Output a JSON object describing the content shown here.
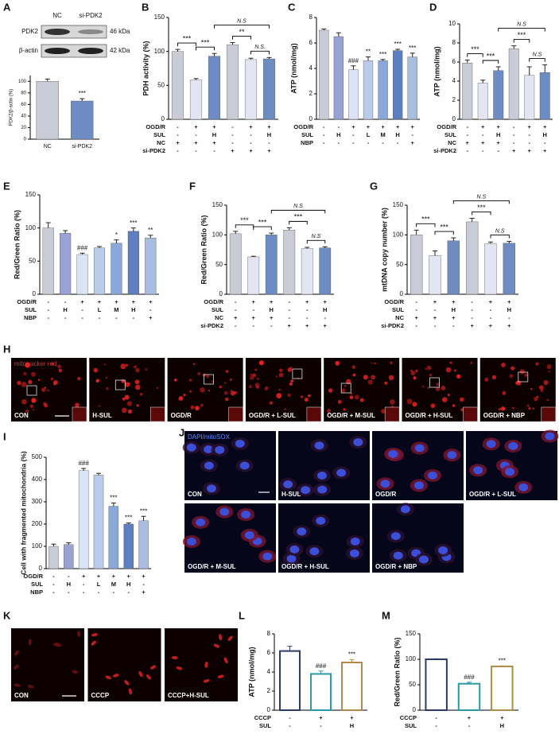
{
  "blot": {
    "panel": "A",
    "lanes": [
      "NC",
      "si-PDK2"
    ],
    "rows": [
      {
        "name": "PDK2",
        "size": "46 kDa"
      },
      {
        "name": "β-actin",
        "size": "42 kDa"
      }
    ]
  },
  "chart_data": [
    {
      "type": "bar",
      "panel": "A",
      "ylabel": "PDK2/β-actin (%)",
      "categories": [
        "NC",
        "si-PDK2"
      ],
      "values": [
        100,
        66
      ],
      "errors": [
        4,
        4
      ],
      "colors": [
        "#c9ccd6",
        "#6d8cc4"
      ],
      "ylim": [
        0,
        110
      ],
      "yticks": [
        0,
        20,
        40,
        60,
        80,
        100
      ],
      "conditions": [],
      "brackets": [],
      "annotations": [
        {
          "bar": 1,
          "text": "***"
        }
      ]
    },
    {
      "type": "bar",
      "panel": "B",
      "ylabel": "PDH activity (%)",
      "categories": [
        null,
        null,
        null,
        null,
        null,
        null
      ],
      "values": [
        100,
        58,
        93,
        110,
        88,
        89
      ],
      "errors": [
        3,
        2,
        4,
        3,
        2,
        2
      ],
      "colors": [
        "#c9ccd6",
        "#e3e6f2",
        "#6d8cc4",
        "#c9ccd6",
        "#e3e6f2",
        "#6d8cc4"
      ],
      "ylim": [
        0,
        150
      ],
      "yticks": [
        0,
        50,
        100,
        150
      ],
      "conditions": [
        {
          "name": "OGD/R",
          "marks": [
            "-",
            "+",
            "+",
            "-",
            "+",
            "+"
          ]
        },
        {
          "name": "SUL",
          "marks": [
            "-",
            "-",
            "H",
            "-",
            "-",
            "H"
          ]
        },
        {
          "name": "NC",
          "marks": [
            "+",
            "+",
            "+",
            "-",
            "-",
            "-"
          ]
        },
        {
          "name": "si-PDK2",
          "marks": [
            "-",
            "-",
            "-",
            "+",
            "+",
            "+"
          ]
        }
      ],
      "brackets": [
        {
          "from": 0,
          "to": 1,
          "text": "***"
        },
        {
          "from": 1,
          "to": 2,
          "text": "***"
        },
        {
          "from": 2,
          "to": 5,
          "text": "N.S"
        },
        {
          "from": 3,
          "to": 4,
          "text": "**"
        },
        {
          "from": 4,
          "to": 5,
          "text": "N.S."
        }
      ],
      "annotations": []
    },
    {
      "type": "bar",
      "panel": "C",
      "ylabel": "ATP (nmol/mg)",
      "categories": [
        null,
        null,
        null,
        null,
        null,
        null,
        null
      ],
      "values": [
        7.0,
        6.5,
        3.9,
        4.6,
        4.6,
        5.4,
        4.9
      ],
      "errors": [
        0.1,
        0.3,
        0.3,
        0.3,
        0.1,
        0.1,
        0.3
      ],
      "colors": [
        "#c9ccd6",
        "#9aa2d4",
        "#dbe4f6",
        "#b9cbe9",
        "#8aa7d9",
        "#5d7fc1",
        "#a9bde0"
      ],
      "ylim": [
        0,
        8
      ],
      "yticks": [
        0,
        2,
        4,
        6,
        8
      ],
      "conditions": [
        {
          "name": "OGD/R",
          "marks": [
            "-",
            "-",
            "+",
            "+",
            "+",
            "+",
            "+"
          ]
        },
        {
          "name": "SUL",
          "marks": [
            "-",
            "H",
            "-",
            "L",
            "M",
            "H",
            "-"
          ]
        },
        {
          "name": "NBP",
          "marks": [
            "-",
            "-",
            "-",
            "-",
            "-",
            "-",
            "+"
          ]
        }
      ],
      "brackets": [],
      "annotations": [
        {
          "bar": 2,
          "text": "###"
        },
        {
          "bar": 3,
          "text": "**"
        },
        {
          "bar": 4,
          "text": "***"
        },
        {
          "bar": 5,
          "text": "***"
        },
        {
          "bar": 6,
          "text": "***"
        }
      ]
    },
    {
      "type": "bar",
      "panel": "D",
      "ylabel": "ATP (nmol/mg)",
      "categories": [
        null,
        null,
        null,
        null,
        null,
        null
      ],
      "values": [
        5.9,
        3.8,
        5.1,
        7.4,
        4.6,
        4.9
      ],
      "errors": [
        0.3,
        0.3,
        0.4,
        0.3,
        0.9,
        0.8
      ],
      "colors": [
        "#c9ccd6",
        "#e3e6f2",
        "#6d8cc4",
        "#c9ccd6",
        "#e3e6f2",
        "#6d8cc4"
      ],
      "ylim": [
        0,
        10
      ],
      "yticks": [
        0,
        2,
        4,
        6,
        8,
        10
      ],
      "conditions": [
        {
          "name": "OGD/R",
          "marks": [
            "-",
            "+",
            "+",
            "-",
            "+",
            "+"
          ]
        },
        {
          "name": "SUL",
          "marks": [
            "-",
            "-",
            "H",
            "-",
            "-",
            "H"
          ]
        },
        {
          "name": "NC",
          "marks": [
            "+",
            "+",
            "+",
            "-",
            "-",
            "-"
          ]
        },
        {
          "name": "si-PDK2",
          "marks": [
            "-",
            "-",
            "-",
            "+",
            "+",
            "+"
          ]
        }
      ],
      "brackets": [
        {
          "from": 0,
          "to": 1,
          "text": "***"
        },
        {
          "from": 1,
          "to": 2,
          "text": "***"
        },
        {
          "from": 2,
          "to": 5,
          "text": "N.S"
        },
        {
          "from": 3,
          "to": 4,
          "text": "***"
        },
        {
          "from": 4,
          "to": 5,
          "text": "N.S"
        }
      ],
      "annotations": []
    },
    {
      "type": "bar",
      "panel": "E",
      "ylabel": "Red/Green Ratio (%)",
      "categories": [
        null,
        null,
        null,
        null,
        null,
        null,
        null
      ],
      "values": [
        100,
        92,
        60,
        70,
        77,
        95,
        85
      ],
      "errors": [
        8,
        4,
        2,
        2,
        5,
        5,
        4
      ],
      "colors": [
        "#c9ccd6",
        "#9aa2d4",
        "#dbe4f6",
        "#b9cbe9",
        "#8aa7d9",
        "#5d7fc1",
        "#a9bde0"
      ],
      "ylim": [
        0,
        150
      ],
      "yticks": [
        0,
        50,
        100,
        150
      ],
      "conditions": [
        {
          "name": "OGD/R",
          "marks": [
            "-",
            "-",
            "+",
            "+",
            "+",
            "+",
            "+"
          ]
        },
        {
          "name": "SUL",
          "marks": [
            "-",
            "H",
            "-",
            "L",
            "M",
            "H",
            "-"
          ]
        },
        {
          "name": "NBP",
          "marks": [
            "-",
            "-",
            "-",
            "-",
            "-",
            "-",
            "+"
          ]
        }
      ],
      "brackets": [],
      "annotations": [
        {
          "bar": 2,
          "text": "###"
        },
        {
          "bar": 4,
          "text": "*"
        },
        {
          "bar": 5,
          "text": "***"
        },
        {
          "bar": 6,
          "text": "**"
        }
      ]
    },
    {
      "type": "bar",
      "panel": "F",
      "ylabel": "Red/Green Ratio (%)",
      "categories": [
        null,
        null,
        null,
        null,
        null,
        null
      ],
      "values": [
        102,
        63,
        100,
        108,
        77,
        78
      ],
      "errors": [
        4,
        1,
        3,
        4,
        2,
        2
      ],
      "colors": [
        "#c9ccd6",
        "#e3e6f2",
        "#6d8cc4",
        "#c9ccd6",
        "#e3e6f2",
        "#6d8cc4"
      ],
      "ylim": [
        0,
        150
      ],
      "yticks": [
        0,
        50,
        100,
        150
      ],
      "conditions": [
        {
          "name": "OGD/R",
          "marks": [
            "-",
            "+",
            "+",
            "-",
            "+",
            "+"
          ]
        },
        {
          "name": "SUL",
          "marks": [
            "-",
            "-",
            "H",
            "-",
            "-",
            "H"
          ]
        },
        {
          "name": "NC",
          "marks": [
            "+",
            "+",
            "+",
            "-",
            "-",
            "-"
          ]
        },
        {
          "name": "si-PDK2",
          "marks": [
            "-",
            "-",
            "-",
            "+",
            "+",
            "+"
          ]
        }
      ],
      "brackets": [
        {
          "from": 0,
          "to": 1,
          "text": "***"
        },
        {
          "from": 1,
          "to": 2,
          "text": "***"
        },
        {
          "from": 2,
          "to": 5,
          "text": "N.S"
        },
        {
          "from": 3,
          "to": 4,
          "text": "***"
        },
        {
          "from": 4,
          "to": 5,
          "text": "N.S"
        }
      ],
      "annotations": []
    },
    {
      "type": "bar",
      "panel": "G",
      "ylabel": "mtDNA copy number (%)",
      "categories": [
        null,
        null,
        null,
        null,
        null,
        null
      ],
      "values": [
        100,
        65,
        90,
        122,
        85,
        86
      ],
      "errors": [
        8,
        8,
        5,
        6,
        3,
        3
      ],
      "colors": [
        "#c9ccd6",
        "#e3e6f2",
        "#6d8cc4",
        "#c9ccd6",
        "#e3e6f2",
        "#6d8cc4"
      ],
      "ylim": [
        0,
        150
      ],
      "yticks": [
        0,
        50,
        100,
        150
      ],
      "conditions": [
        {
          "name": "OGD/R",
          "marks": [
            "-",
            "+",
            "+",
            "-",
            "+",
            "+"
          ]
        },
        {
          "name": "SUL",
          "marks": [
            "-",
            "-",
            "H",
            "-",
            "-",
            "H"
          ]
        },
        {
          "name": "NC",
          "marks": [
            "+",
            "+",
            "+",
            "-",
            "-",
            "-"
          ]
        },
        {
          "name": "si-PDK2",
          "marks": [
            "-",
            "-",
            "-",
            "+",
            "+",
            "+"
          ]
        }
      ],
      "brackets": [
        {
          "from": 0,
          "to": 1,
          "text": "***"
        },
        {
          "from": 1,
          "to": 2,
          "text": "***"
        },
        {
          "from": 2,
          "to": 5,
          "text": "N.S"
        },
        {
          "from": 3,
          "to": 4,
          "text": "***"
        },
        {
          "from": 4,
          "to": 5,
          "text": "N.S"
        }
      ],
      "annotations": []
    },
    {
      "type": "bar",
      "panel": "I",
      "ylabel": "Cell with fragmented mitochondria (%)",
      "categories": [
        null,
        null,
        null,
        null,
        null,
        null,
        null
      ],
      "values": [
        100,
        108,
        440,
        420,
        280,
        200,
        215
      ],
      "errors": [
        10,
        8,
        10,
        8,
        15,
        5,
        20
      ],
      "colors": [
        "#c9ccd6",
        "#9aa2d4",
        "#dbe4f6",
        "#b9cbe9",
        "#8aa7d9",
        "#5d7fc1",
        "#a9bde0"
      ],
      "ylim": [
        0,
        500
      ],
      "yticks": [
        0,
        100,
        200,
        300,
        400,
        500
      ],
      "conditions": [
        {
          "name": "OGD/R",
          "marks": [
            "-",
            "-",
            "+",
            "+",
            "+",
            "+",
            "+"
          ]
        },
        {
          "name": "SUL",
          "marks": [
            "-",
            "H",
            "-",
            "L",
            "M",
            "H",
            "-"
          ]
        },
        {
          "name": "NBP",
          "marks": [
            "-",
            "-",
            "-",
            "-",
            "-",
            "-",
            "+"
          ]
        }
      ],
      "brackets": [],
      "annotations": [
        {
          "bar": 2,
          "text": "###"
        },
        {
          "bar": 4,
          "text": "***"
        },
        {
          "bar": 5,
          "text": "***"
        },
        {
          "bar": 6,
          "text": "***"
        }
      ]
    },
    {
      "type": "bar",
      "panel": "L",
      "ylabel": "ATP (nmol/mg)",
      "hollow": true,
      "categories": [
        null,
        null,
        null
      ],
      "values": [
        6.2,
        3.8,
        5.0
      ],
      "errors": [
        0.5,
        0.3,
        0.3
      ],
      "colors": [
        "#2b3a67",
        "#2a9aa8",
        "#b08a4a"
      ],
      "ylim": [
        0,
        8
      ],
      "yticks": [
        0,
        2,
        4,
        6,
        8
      ],
      "conditions": [
        {
          "name": "CCCP",
          "marks": [
            "-",
            "+",
            "+"
          ]
        },
        {
          "name": "SUL",
          "marks": [
            "-",
            "-",
            "H"
          ]
        }
      ],
      "brackets": [],
      "annotations": [
        {
          "bar": 1,
          "text": "###"
        },
        {
          "bar": 2,
          "text": "***"
        }
      ]
    },
    {
      "type": "bar",
      "panel": "M",
      "ylabel": "Red/Green Ratio (%)",
      "hollow": true,
      "categories": [
        null,
        null,
        null
      ],
      "values": [
        100,
        52,
        86
      ],
      "errors": [
        1,
        3,
        1
      ],
      "colors": [
        "#2b3a67",
        "#2a9aa8",
        "#b08a4a"
      ],
      "ylim": [
        0,
        150
      ],
      "yticks": [
        0,
        50,
        100,
        150
      ],
      "conditions": [
        {
          "name": "CCCP",
          "marks": [
            "-",
            "+",
            "+"
          ]
        },
        {
          "name": "SUL",
          "marks": [
            "-",
            "-",
            "H"
          ]
        }
      ],
      "brackets": [],
      "annotations": [
        {
          "bar": 1,
          "text": "###"
        },
        {
          "bar": 2,
          "text": "***"
        }
      ]
    }
  ],
  "image_panels": [
    {
      "panel": "H",
      "tag": "mitotracker red",
      "images": [
        "CON",
        "H-SUL",
        "OGD/R",
        "OGD/R + L-SUL",
        "OGD/R + M-SUL",
        "OGD/R + H-SUL",
        "OGD/R + NBP"
      ]
    },
    {
      "panel": "J",
      "tag": "DAPI/mitoSOX",
      "images": [
        "CON",
        "H-SUL",
        "OGD/R",
        "OGD/R + L-SUL",
        "OGD/R + M-SUL",
        "OGD/R + H-SUL",
        "OGD/R + NBP"
      ]
    },
    {
      "panel": "K",
      "images": [
        "CON",
        "CCCP",
        "CCCP+H-SUL"
      ]
    }
  ]
}
